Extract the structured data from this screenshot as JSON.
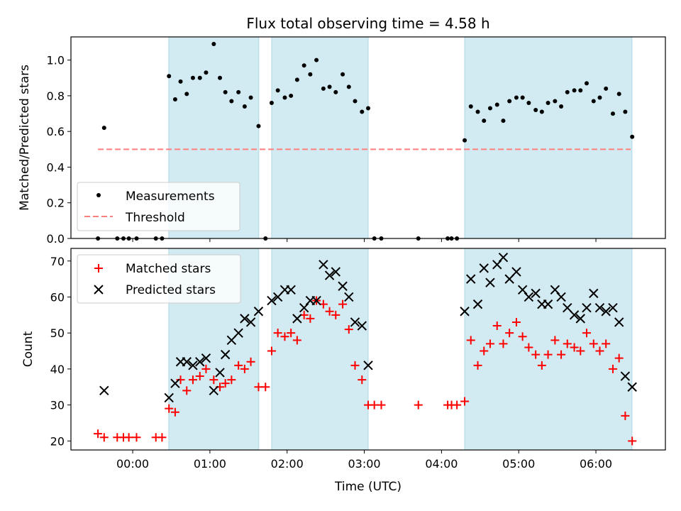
{
  "chart_data": {
    "type": "scatter",
    "title": "Flux total observing time = 4.58 h",
    "xlabel": "Time (UTC)",
    "x_unit": "hours since 00:00 UTC",
    "xlim": [
      -0.8,
      6.9
    ],
    "xticks": [
      {
        "value": 0,
        "label": "00:00"
      },
      {
        "value": 1,
        "label": "01:00"
      },
      {
        "value": 2,
        "label": "02:00"
      },
      {
        "value": 3,
        "label": "03:00"
      },
      {
        "value": 4,
        "label": "04:00"
      },
      {
        "value": 5,
        "label": "05:00"
      },
      {
        "value": 6,
        "label": "06:00"
      }
    ],
    "shaded_intervals": [
      [
        0.467,
        1.633
      ],
      [
        1.8,
        3.05
      ],
      [
        4.3,
        6.467
      ]
    ],
    "shade_color": "#add8e6",
    "panels": [
      {
        "ylabel": "Matched/Predicted stars",
        "ylim": [
          0,
          1.13
        ],
        "yticks": [
          "0.0",
          "0.2",
          "0.4",
          "0.6",
          "0.8",
          "1.0"
        ],
        "threshold": {
          "name": "Threshold",
          "value": 0.5,
          "x_range": [
            -0.45,
            6.45
          ],
          "color": "#ff7f7f"
        },
        "series": [
          {
            "name": "Measurements",
            "marker": "dot",
            "color": "#000000",
            "x": [
              -0.45,
              -0.37,
              -0.2,
              -0.12,
              -0.05,
              0.05,
              0.3,
              0.38,
              0.47,
              0.55,
              0.62,
              0.7,
              0.78,
              0.87,
              0.95,
              1.05,
              1.13,
              1.2,
              1.28,
              1.37,
              1.45,
              1.53,
              1.63,
              1.72,
              1.8,
              1.88,
              1.97,
              2.05,
              2.13,
              2.22,
              2.3,
              2.38,
              2.47,
              2.55,
              2.63,
              2.72,
              2.8,
              2.88,
              2.97,
              3.05,
              3.13,
              3.22,
              3.7,
              4.08,
              4.13,
              4.2,
              4.3,
              4.38,
              4.47,
              4.55,
              4.63,
              4.72,
              4.8,
              4.88,
              4.97,
              5.05,
              5.13,
              5.22,
              5.3,
              5.38,
              5.47,
              5.55,
              5.63,
              5.72,
              5.8,
              5.88,
              5.97,
              6.05,
              6.13,
              6.22,
              6.3,
              6.38,
              6.47
            ],
            "y": [
              0.0,
              0.62,
              0.0,
              0.0,
              0.0,
              0.0,
              0.0,
              0.0,
              0.91,
              0.78,
              0.88,
              0.81,
              0.9,
              0.9,
              0.93,
              1.09,
              0.9,
              0.82,
              0.77,
              0.82,
              0.74,
              0.79,
              0.63,
              0.0,
              0.76,
              0.83,
              0.79,
              0.8,
              0.89,
              0.97,
              0.92,
              1.0,
              0.84,
              0.85,
              0.82,
              0.92,
              0.85,
              0.77,
              0.71,
              0.73,
              0.0,
              0.0,
              0.0,
              0.0,
              0.0,
              0.0,
              0.55,
              0.74,
              0.71,
              0.66,
              0.73,
              0.75,
              0.66,
              0.77,
              0.79,
              0.79,
              0.76,
              0.72,
              0.71,
              0.76,
              0.77,
              0.74,
              0.82,
              0.83,
              0.83,
              0.87,
              0.77,
              0.79,
              0.84,
              0.7,
              0.81,
              0.71,
              0.57
            ]
          }
        ],
        "legend": {
          "loc": "lower left",
          "entries": [
            "Measurements",
            "Threshold"
          ]
        }
      },
      {
        "ylabel": "Count",
        "ylim": [
          17.5,
          73.5
        ],
        "yticks": [
          "20",
          "30",
          "40",
          "50",
          "60",
          "70"
        ],
        "series": [
          {
            "name": "Matched stars",
            "marker": "plus",
            "color": "#ff0000",
            "x": [
              -0.45,
              -0.37,
              -0.2,
              -0.12,
              -0.05,
              0.05,
              0.3,
              0.38,
              0.47,
              0.55,
              0.62,
              0.7,
              0.78,
              0.87,
              0.95,
              1.05,
              1.13,
              1.2,
              1.28,
              1.37,
              1.45,
              1.53,
              1.63,
              1.72,
              1.8,
              1.88,
              1.97,
              2.05,
              2.13,
              2.22,
              2.3,
              2.38,
              2.47,
              2.55,
              2.63,
              2.72,
              2.8,
              2.88,
              2.97,
              3.05,
              3.13,
              3.22,
              3.7,
              4.08,
              4.13,
              4.2,
              4.3,
              4.38,
              4.47,
              4.55,
              4.63,
              4.72,
              4.8,
              4.88,
              4.97,
              5.05,
              5.13,
              5.22,
              5.3,
              5.38,
              5.47,
              5.55,
              5.63,
              5.72,
              5.8,
              5.88,
              5.97,
              6.05,
              6.13,
              6.22,
              6.3,
              6.38,
              6.47
            ],
            "y": [
              22,
              21,
              21,
              21,
              21,
              21,
              21,
              21,
              29,
              28,
              37,
              34,
              37,
              38,
              40,
              37,
              35,
              36,
              37,
              41,
              40,
              42,
              35,
              35,
              45,
              50,
              49,
              50,
              48,
              55,
              54,
              59,
              58,
              56,
              55,
              58,
              51,
              41,
              37,
              30,
              30,
              30,
              30,
              30,
              30,
              30,
              31,
              48,
              41,
              45,
              47,
              52,
              47,
              50,
              53,
              49,
              46,
              44,
              41,
              44,
              48,
              44,
              47,
              46,
              45,
              50,
              47,
              45,
              47,
              40,
              43,
              27,
              20
            ]
          },
          {
            "name": "Predicted stars",
            "marker": "x",
            "color": "#000000",
            "x": [
              -0.37,
              0.47,
              0.55,
              0.62,
              0.7,
              0.78,
              0.87,
              0.95,
              1.05,
              1.13,
              1.2,
              1.28,
              1.37,
              1.45,
              1.53,
              1.63,
              1.8,
              1.88,
              1.97,
              2.05,
              2.13,
              2.22,
              2.3,
              2.38,
              2.47,
              2.55,
              2.63,
              2.72,
              2.8,
              2.88,
              2.97,
              3.05,
              4.3,
              4.38,
              4.47,
              4.55,
              4.63,
              4.72,
              4.8,
              4.88,
              4.97,
              5.05,
              5.13,
              5.22,
              5.3,
              5.38,
              5.47,
              5.55,
              5.63,
              5.72,
              5.8,
              5.88,
              5.97,
              6.05,
              6.13,
              6.22,
              6.3,
              6.38,
              6.47
            ],
            "y": [
              34,
              32,
              36,
              42,
              42,
              41,
              42,
              43,
              34,
              39,
              44,
              48,
              50,
              54,
              53,
              56,
              59,
              60,
              62,
              62,
              54,
              57,
              59,
              59,
              69,
              66,
              67,
              63,
              60,
              53,
              52,
              41,
              56,
              65,
              58,
              68,
              64,
              69,
              71,
              65,
              67,
              62,
              60,
              61,
              58,
              58,
              62,
              60,
              57,
              55,
              54,
              57,
              61,
              57,
              56,
              57,
              53,
              38,
              35
            ]
          }
        ],
        "legend": {
          "loc": "upper left",
          "entries": [
            "Matched stars",
            "Predicted stars"
          ]
        }
      }
    ]
  }
}
